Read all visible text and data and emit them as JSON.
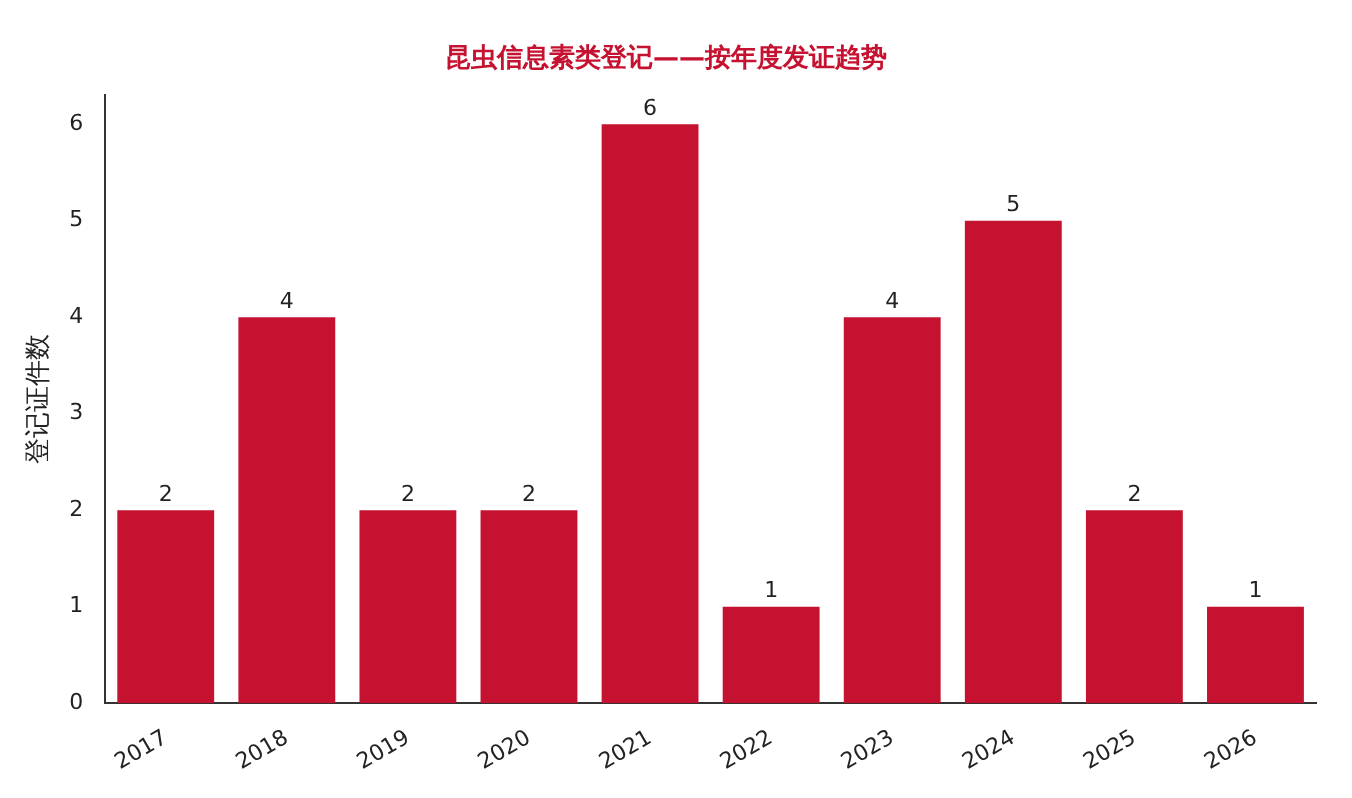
{
  "chart_data": {
    "type": "bar",
    "title": "昆虫信息素类登记——按年度发证趋势",
    "ylabel": "登记证件数",
    "categories": [
      "2017",
      "2018",
      "2019",
      "2020",
      "2021",
      "2022",
      "2023",
      "2024",
      "2025",
      "2026"
    ],
    "values": [
      2,
      4,
      2,
      2,
      6,
      1,
      4,
      5,
      2,
      1
    ],
    "color": "#c41230",
    "ylim": [
      0,
      6.3
    ],
    "yticks": [
      0,
      1,
      2,
      3,
      4,
      5,
      6
    ],
    "grid": false,
    "legend": false,
    "data_labels": true
  }
}
